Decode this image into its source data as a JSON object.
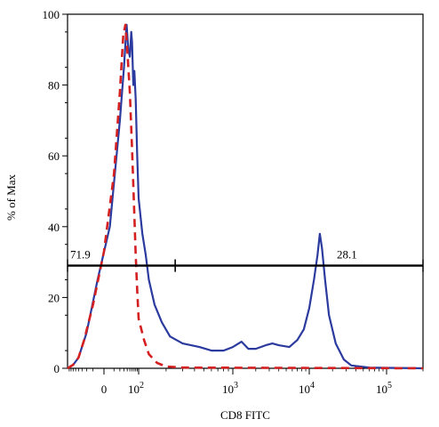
{
  "chart_data": {
    "type": "line",
    "title": "",
    "xlabel": "CD8 FITC",
    "ylabel": "% of Max",
    "x_scale": "biexponential",
    "ylim": [
      0,
      100
    ],
    "y_ticks": [
      0,
      20,
      40,
      60,
      80,
      100
    ],
    "x_ticks": [
      {
        "value": 0,
        "label": "0"
      },
      {
        "value": 100,
        "label": "10",
        "exp": "2"
      },
      {
        "value": 1000,
        "label": "10",
        "exp": "3"
      },
      {
        "value": 10000,
        "label": "10",
        "exp": "4"
      },
      {
        "value": 100000,
        "label": "10",
        "exp": "5"
      }
    ],
    "grid": false,
    "legend": "none",
    "series": [
      {
        "color": "#2b3a9e",
        "style": "solid",
        "points": [
          [
            -90,
            0
          ],
          [
            -60,
            1
          ],
          [
            -40,
            3
          ],
          [
            -20,
            10
          ],
          [
            -5,
            25
          ],
          [
            5,
            40
          ],
          [
            20,
            70
          ],
          [
            30,
            85
          ],
          [
            38,
            97
          ],
          [
            44,
            90
          ],
          [
            50,
            88
          ],
          [
            56,
            95
          ],
          [
            60,
            92
          ],
          [
            66,
            80
          ],
          [
            72,
            84
          ],
          [
            80,
            76
          ],
          [
            90,
            60
          ],
          [
            100,
            48
          ],
          [
            110,
            38
          ],
          [
            120,
            32
          ],
          [
            130,
            25
          ],
          [
            150,
            18
          ],
          [
            180,
            13
          ],
          [
            220,
            9
          ],
          [
            300,
            7
          ],
          [
            450,
            6
          ],
          [
            600,
            5
          ],
          [
            800,
            5
          ],
          [
            1000,
            6
          ],
          [
            1300,
            7.5
          ],
          [
            1600,
            5.5
          ],
          [
            2000,
            5.5
          ],
          [
            2700,
            6.5
          ],
          [
            3300,
            7
          ],
          [
            4000,
            6.5
          ],
          [
            5500,
            6
          ],
          [
            7000,
            8
          ],
          [
            8500,
            11
          ],
          [
            10000,
            17
          ],
          [
            11500,
            25
          ],
          [
            12800,
            32
          ],
          [
            13700,
            38
          ],
          [
            14600,
            34
          ],
          [
            16000,
            25
          ],
          [
            18000,
            15
          ],
          [
            22000,
            7
          ],
          [
            28000,
            2.5
          ],
          [
            35000,
            0.8
          ],
          [
            60000,
            0.2
          ],
          [
            200000,
            0
          ]
        ]
      },
      {
        "color": "#d42020",
        "style": "dashed",
        "points": [
          [
            -90,
            0
          ],
          [
            -60,
            1
          ],
          [
            -40,
            3
          ],
          [
            -25,
            8
          ],
          [
            -10,
            18
          ],
          [
            0,
            33
          ],
          [
            10,
            55
          ],
          [
            20,
            78
          ],
          [
            28,
            94
          ],
          [
            34,
            97
          ],
          [
            40,
            90
          ],
          [
            50,
            78
          ],
          [
            60,
            62
          ],
          [
            70,
            46
          ],
          [
            80,
            32
          ],
          [
            90,
            22
          ],
          [
            100,
            14
          ],
          [
            115,
            8
          ],
          [
            130,
            4
          ],
          [
            160,
            1.5
          ],
          [
            200,
            0.5
          ],
          [
            300,
            0.2
          ],
          [
            200000,
            0
          ]
        ]
      }
    ],
    "gates": [
      {
        "label": "71.9",
        "x_start": -90,
        "x_end": 250,
        "y": 29
      },
      {
        "label": "28.1",
        "x_start": 250,
        "x_end": 200000,
        "y": 29
      }
    ]
  }
}
